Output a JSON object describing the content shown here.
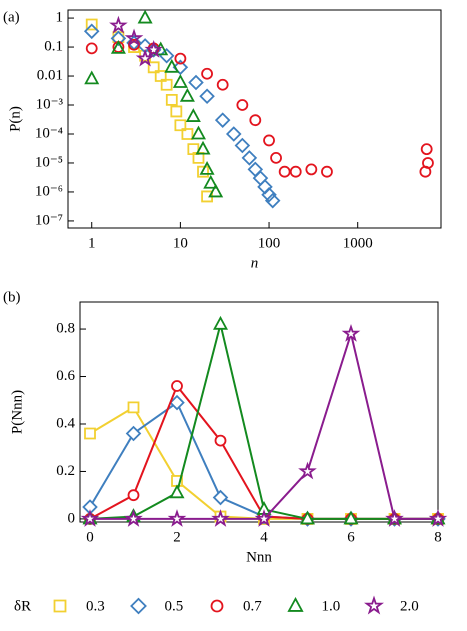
{
  "chart_data": [
    {
      "type": "scatter",
      "label": "(a)",
      "xlabel": "n",
      "ylabel": "P(n)",
      "xlog": true,
      "ylog": true,
      "xlim": [
        0.54,
        8700
      ],
      "ylim": [
        5.7e-08,
        1.9
      ],
      "xticks": [
        1,
        10,
        100,
        1000
      ],
      "yticks": [
        1,
        0.1,
        0.01,
        {
          "value": 0.001,
          "label": "10⁻³"
        },
        {
          "value": 0.0001,
          "label": "10⁻⁴"
        },
        {
          "value": 1e-05,
          "label": "10⁻⁵"
        },
        {
          "value": 1e-06,
          "label": "10⁻⁶"
        },
        {
          "value": 1e-07,
          "label": "10⁻⁷"
        }
      ],
      "series": [
        {
          "color": "#f2d031",
          "marker": "square",
          "x": [
            1,
            2,
            3,
            4,
            5,
            6,
            7,
            8,
            9,
            10,
            12,
            14,
            16,
            18,
            20
          ],
          "values": [
            0.6,
            0.22,
            0.1,
            0.05,
            0.02,
            0.01,
            0.005,
            0.0015,
            0.0006,
            0.0002,
            0.0001,
            3e-05,
            1.5e-05,
            5e-06,
            7e-07
          ]
        },
        {
          "color": "#3f7fbf",
          "marker": "diamond",
          "x": [
            1,
            2,
            3,
            4,
            5,
            7,
            10,
            15,
            20,
            30,
            40,
            50,
            60,
            70,
            80,
            90,
            100,
            110
          ],
          "values": [
            0.35,
            0.2,
            0.14,
            0.11,
            0.08,
            0.05,
            0.02,
            0.006,
            0.002,
            0.0003,
            0.0001,
            4e-05,
            1.5e-05,
            6e-06,
            3e-06,
            1.5e-06,
            8e-07,
            5e-07
          ]
        },
        {
          "color": "#e3141e",
          "marker": "circle",
          "x": [
            1,
            2,
            3,
            5,
            10,
            20,
            30,
            50,
            70,
            100,
            120,
            150,
            200,
            300,
            450,
            5800,
            6000,
            6200
          ],
          "values": [
            0.09,
            0.1,
            0.12,
            0.09,
            0.04,
            0.012,
            0.005,
            0.001,
            0.0003,
            6e-05,
            1.5e-05,
            5e-06,
            5e-06,
            6e-06,
            5e-06,
            5e-06,
            3e-05,
            1e-05
          ]
        },
        {
          "color": "#138a1f",
          "marker": "triangle",
          "x": [
            1,
            2,
            4,
            6,
            8,
            10,
            12,
            14,
            16,
            18,
            20,
            22,
            25
          ],
          "values": [
            0.008,
            0.09,
            1,
            0.08,
            0.02,
            0.006,
            0.002,
            0.0004,
            0.0001,
            3e-05,
            6e-06,
            2e-06,
            1e-06
          ]
        },
        {
          "color": "#8a1c8e",
          "marker": "star",
          "x": [
            2,
            3,
            4,
            5
          ],
          "values": [
            0.55,
            0.2,
            0.04,
            0.08
          ]
        }
      ]
    },
    {
      "type": "line",
      "label": "(b)",
      "xlabel": "Nnn",
      "ylabel": "P(Nnn)",
      "xlim": [
        -0.23,
        8
      ],
      "ylim": [
        -0.013,
        0.914
      ],
      "xticks": [
        0,
        2,
        4,
        6,
        8
      ],
      "yticks": [
        0,
        0.2,
        0.4,
        0.6,
        0.8
      ],
      "x": [
        0,
        1,
        2,
        3,
        4,
        5,
        6,
        7,
        8
      ],
      "legend_title": "δR",
      "series": [
        {
          "name": "0.3",
          "color": "#f2d031",
          "marker": "square",
          "values": [
            0.36,
            0.47,
            0.16,
            0.01,
            0,
            0,
            0,
            0,
            0
          ]
        },
        {
          "name": "0.5",
          "color": "#3f7fbf",
          "marker": "diamond",
          "values": [
            0.05,
            0.36,
            0.49,
            0.09,
            0.01,
            0,
            0,
            0,
            0
          ]
        },
        {
          "name": "0.7",
          "color": "#e3141e",
          "marker": "circle",
          "values": [
            0,
            0.1,
            0.56,
            0.33,
            0.01,
            0,
            0,
            0,
            0
          ]
        },
        {
          "name": "1.0",
          "color": "#138a1f",
          "marker": "triangle",
          "values": [
            0,
            0.01,
            0.11,
            0.82,
            0.04,
            0,
            0,
            0,
            0
          ]
        },
        {
          "name": "2.0",
          "color": "#8a1c8e",
          "marker": "star",
          "values": [
            0,
            0,
            0,
            0,
            0,
            0.2,
            0.78,
            0,
            0
          ]
        }
      ]
    }
  ]
}
